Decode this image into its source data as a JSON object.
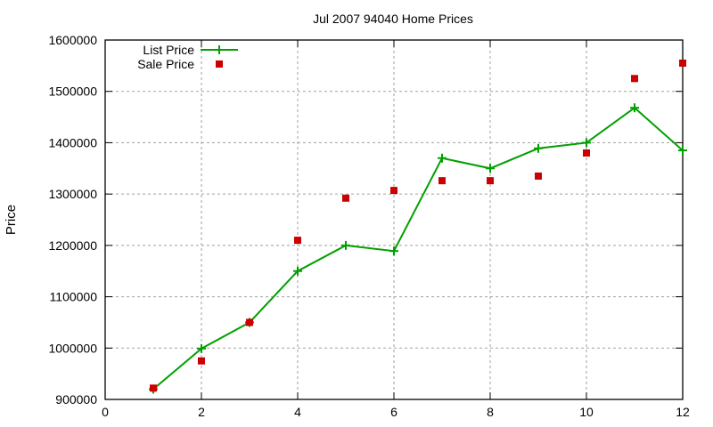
{
  "chart_data": {
    "type": "line",
    "title": "Jul 2007 94040 Home Prices",
    "xlabel": "",
    "ylabel": "Price",
    "xlim": [
      0,
      12
    ],
    "ylim": [
      900000,
      1600000
    ],
    "x_ticks": [
      0,
      2,
      4,
      6,
      8,
      10,
      12
    ],
    "y_ticks": [
      900000,
      1000000,
      1100000,
      1200000,
      1300000,
      1400000,
      1500000,
      1600000
    ],
    "grid": true,
    "legend_position": "top-left",
    "x": [
      1,
      2,
      3,
      4,
      5,
      6,
      7,
      8,
      9,
      10,
      11,
      12
    ],
    "series": [
      {
        "name": "List Price",
        "style": "linespoints",
        "marker": "plus",
        "color": "#00a000",
        "values": [
          920000,
          999000,
          1050000,
          1150000,
          1200000,
          1189000,
          1370000,
          1350000,
          1389000,
          1400000,
          1468000,
          1385000
        ]
      },
      {
        "name": "Sale Price",
        "style": "points",
        "marker": "square",
        "color": "#cc0000",
        "values": [
          922000,
          975000,
          1050000,
          1210000,
          1292000,
          1307000,
          1326000,
          1326000,
          1335000,
          1380000,
          1525000,
          1555000
        ]
      }
    ]
  }
}
